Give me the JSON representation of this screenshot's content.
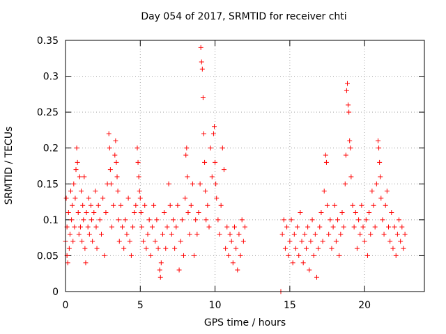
{
  "chart_data": {
    "type": "scatter",
    "title": "Day 054 of 2017, SRMTID for receiver chti",
    "xlabel": "GPS time / hours",
    "ylabel": "SRMTID / TECUs",
    "xlim": [
      0,
      24
    ],
    "ylim": [
      0,
      0.35
    ],
    "xticks": [
      0,
      5,
      10,
      15,
      20
    ],
    "xtick_labels": [
      "0",
      "5",
      "10",
      "15",
      "20"
    ],
    "yticks": [
      0,
      0.05,
      0.1,
      0.15,
      0.2,
      0.25,
      0.3,
      0.35
    ],
    "ytick_labels": [
      "0",
      "0.05",
      "0.1",
      "0.15",
      "0.2",
      "0.25",
      "0.3",
      "0.35"
    ],
    "grid": true,
    "marker": "+",
    "color": "#ff0000",
    "series": [
      {
        "name": "SRMTID",
        "points": [
          [
            0.0,
            0.07
          ],
          [
            0.05,
            0.13
          ],
          [
            0.1,
            0.05
          ],
          [
            0.1,
            0.09
          ],
          [
            0.15,
            0.04
          ],
          [
            0.2,
            0.11
          ],
          [
            0.25,
            0.06
          ],
          [
            0.3,
            0.08
          ],
          [
            0.35,
            0.14
          ],
          [
            0.4,
            0.1
          ],
          [
            0.45,
            0.12
          ],
          [
            0.5,
            0.07
          ],
          [
            0.55,
            0.15
          ],
          [
            0.6,
            0.09
          ],
          [
            0.65,
            0.13
          ],
          [
            0.7,
            0.17
          ],
          [
            0.75,
            0.2
          ],
          [
            0.8,
            0.18
          ],
          [
            0.85,
            0.11
          ],
          [
            0.9,
            0.08
          ],
          [
            0.95,
            0.16
          ],
          [
            1.0,
            0.09
          ],
          [
            1.05,
            0.14
          ],
          [
            1.1,
            0.07
          ],
          [
            1.15,
            0.12
          ],
          [
            1.2,
            0.1
          ],
          [
            1.25,
            0.16
          ],
          [
            1.3,
            0.06
          ],
          [
            1.35,
            0.04
          ],
          [
            1.4,
            0.11
          ],
          [
            1.5,
            0.09
          ],
          [
            1.55,
            0.13
          ],
          [
            1.6,
            0.08
          ],
          [
            1.7,
            0.12
          ],
          [
            1.75,
            0.1
          ],
          [
            1.8,
            0.07
          ],
          [
            1.9,
            0.11
          ],
          [
            2.0,
            0.14
          ],
          [
            2.05,
            0.09
          ],
          [
            2.1,
            0.06
          ],
          [
            2.2,
            0.12
          ],
          [
            2.3,
            0.1
          ],
          [
            2.4,
            0.08
          ],
          [
            2.5,
            0.13
          ],
          [
            2.6,
            0.05
          ],
          [
            2.7,
            0.11
          ],
          [
            2.8,
            0.15
          ],
          [
            2.9,
            0.22
          ],
          [
            2.95,
            0.2
          ],
          [
            3.0,
            0.17
          ],
          [
            3.05,
            0.15
          ],
          [
            3.1,
            0.09
          ],
          [
            3.2,
            0.12
          ],
          [
            3.3,
            0.19
          ],
          [
            3.35,
            0.21
          ],
          [
            3.4,
            0.18
          ],
          [
            3.45,
            0.16
          ],
          [
            3.5,
            0.14
          ],
          [
            3.55,
            0.1
          ],
          [
            3.6,
            0.07
          ],
          [
            3.7,
            0.12
          ],
          [
            3.8,
            0.09
          ],
          [
            3.9,
            0.06
          ],
          [
            4.0,
            0.1
          ],
          [
            4.1,
            0.08
          ],
          [
            4.2,
            0.13
          ],
          [
            4.3,
            0.07
          ],
          [
            4.4,
            0.05
          ],
          [
            4.5,
            0.09
          ],
          [
            4.6,
            0.11
          ],
          [
            4.7,
            0.12
          ],
          [
            4.8,
            0.2
          ],
          [
            4.85,
            0.18
          ],
          [
            4.9,
            0.16
          ],
          [
            4.95,
            0.14
          ],
          [
            5.0,
            0.13
          ],
          [
            5.05,
            0.11
          ],
          [
            5.1,
            0.09
          ],
          [
            5.2,
            0.07
          ],
          [
            5.3,
            0.12
          ],
          [
            5.4,
            0.06
          ],
          [
            5.5,
            0.08
          ],
          [
            5.6,
            0.1
          ],
          [
            5.7,
            0.05
          ],
          [
            5.8,
            0.09
          ],
          [
            5.9,
            0.12
          ],
          [
            6.0,
            0.07
          ],
          [
            6.1,
            0.1
          ],
          [
            6.2,
            0.06
          ],
          [
            6.3,
            0.03
          ],
          [
            6.35,
            0.02
          ],
          [
            6.4,
            0.04
          ],
          [
            6.5,
            0.08
          ],
          [
            6.6,
            0.11
          ],
          [
            6.7,
            0.06
          ],
          [
            6.8,
            0.09
          ],
          [
            6.9,
            0.15
          ],
          [
            7.0,
            0.12
          ],
          [
            7.1,
            0.08
          ],
          [
            7.2,
            0.1
          ],
          [
            7.3,
            0.06
          ],
          [
            7.4,
            0.09
          ],
          [
            7.5,
            0.12
          ],
          [
            7.6,
            0.03
          ],
          [
            7.7,
            0.07
          ],
          [
            7.8,
            0.1
          ],
          [
            7.9,
            0.05
          ],
          [
            8.0,
            0.13
          ],
          [
            8.05,
            0.19
          ],
          [
            8.1,
            0.2
          ],
          [
            8.15,
            0.16
          ],
          [
            8.2,
            0.11
          ],
          [
            8.3,
            0.08
          ],
          [
            8.4,
            0.12
          ],
          [
            8.5,
            0.15
          ],
          [
            8.6,
            0.05
          ],
          [
            8.7,
            0.1
          ],
          [
            8.8,
            0.08
          ],
          [
            8.9,
            0.11
          ],
          [
            9.0,
            0.15
          ],
          [
            9.05,
            0.34
          ],
          [
            9.1,
            0.32
          ],
          [
            9.15,
            0.31
          ],
          [
            9.2,
            0.27
          ],
          [
            9.25,
            0.22
          ],
          [
            9.3,
            0.18
          ],
          [
            9.35,
            0.14
          ],
          [
            9.4,
            0.1
          ],
          [
            9.5,
            0.12
          ],
          [
            9.6,
            0.09
          ],
          [
            9.7,
            0.2
          ],
          [
            9.8,
            0.16
          ],
          [
            9.9,
            0.22
          ],
          [
            9.95,
            0.23
          ],
          [
            10.0,
            0.18
          ],
          [
            10.05,
            0.15
          ],
          [
            10.1,
            0.13
          ],
          [
            10.2,
            0.1
          ],
          [
            10.3,
            0.08
          ],
          [
            10.4,
            0.12
          ],
          [
            10.5,
            0.2
          ],
          [
            10.6,
            0.17
          ],
          [
            10.7,
            0.06
          ],
          [
            10.8,
            0.09
          ],
          [
            10.9,
            0.05
          ],
          [
            11.0,
            0.08
          ],
          [
            11.1,
            0.07
          ],
          [
            11.2,
            0.04
          ],
          [
            11.3,
            0.09
          ],
          [
            11.4,
            0.06
          ],
          [
            11.5,
            0.03
          ],
          [
            11.6,
            0.08
          ],
          [
            11.7,
            0.05
          ],
          [
            11.8,
            0.1
          ],
          [
            11.9,
            0.07
          ],
          [
            12.0,
            0.09
          ],
          [
            14.4,
            0.0
          ],
          [
            14.5,
            0.08
          ],
          [
            14.6,
            0.1
          ],
          [
            14.7,
            0.06
          ],
          [
            14.8,
            0.09
          ],
          [
            14.9,
            0.05
          ],
          [
            15.0,
            0.07
          ],
          [
            15.1,
            0.1
          ],
          [
            15.2,
            0.04
          ],
          [
            15.3,
            0.08
          ],
          [
            15.4,
            0.06
          ],
          [
            15.5,
            0.09
          ],
          [
            15.6,
            0.05
          ],
          [
            15.7,
            0.11
          ],
          [
            15.8,
            0.07
          ],
          [
            15.9,
            0.04
          ],
          [
            16.0,
            0.08
          ],
          [
            16.1,
            0.06
          ],
          [
            16.2,
            0.09
          ],
          [
            16.3,
            0.03
          ],
          [
            16.4,
            0.07
          ],
          [
            16.5,
            0.1
          ],
          [
            16.6,
            0.05
          ],
          [
            16.7,
            0.08
          ],
          [
            16.8,
            0.02
          ],
          [
            16.9,
            0.06
          ],
          [
            17.0,
            0.09
          ],
          [
            17.1,
            0.11
          ],
          [
            17.2,
            0.07
          ],
          [
            17.3,
            0.14
          ],
          [
            17.4,
            0.19
          ],
          [
            17.45,
            0.18
          ],
          [
            17.5,
            0.12
          ],
          [
            17.6,
            0.08
          ],
          [
            17.7,
            0.1
          ],
          [
            17.8,
            0.06
          ],
          [
            17.9,
            0.09
          ],
          [
            18.0,
            0.12
          ],
          [
            18.1,
            0.07
          ],
          [
            18.2,
            0.1
          ],
          [
            18.3,
            0.05
          ],
          [
            18.4,
            0.08
          ],
          [
            18.5,
            0.11
          ],
          [
            18.6,
            0.09
          ],
          [
            18.7,
            0.15
          ],
          [
            18.75,
            0.19
          ],
          [
            18.8,
            0.28
          ],
          [
            18.85,
            0.29
          ],
          [
            18.9,
            0.26
          ],
          [
            18.95,
            0.25
          ],
          [
            19.0,
            0.21
          ],
          [
            19.05,
            0.2
          ],
          [
            19.1,
            0.16
          ],
          [
            19.2,
            0.12
          ],
          [
            19.3,
            0.09
          ],
          [
            19.4,
            0.11
          ],
          [
            19.5,
            0.06
          ],
          [
            19.6,
            0.1
          ],
          [
            19.7,
            0.08
          ],
          [
            19.8,
            0.12
          ],
          [
            19.9,
            0.09
          ],
          [
            20.0,
            0.07
          ],
          [
            20.1,
            0.1
          ],
          [
            20.2,
            0.05
          ],
          [
            20.3,
            0.11
          ],
          [
            20.4,
            0.08
          ],
          [
            20.5,
            0.14
          ],
          [
            20.6,
            0.12
          ],
          [
            20.7,
            0.09
          ],
          [
            20.8,
            0.15
          ],
          [
            20.9,
            0.21
          ],
          [
            20.95,
            0.2
          ],
          [
            21.0,
            0.18
          ],
          [
            21.05,
            0.16
          ],
          [
            21.1,
            0.13
          ],
          [
            21.2,
            0.1
          ],
          [
            21.3,
            0.08
          ],
          [
            21.4,
            0.12
          ],
          [
            21.5,
            0.14
          ],
          [
            21.6,
            0.09
          ],
          [
            21.7,
            0.07
          ],
          [
            21.8,
            0.11
          ],
          [
            21.9,
            0.06
          ],
          [
            22.0,
            0.09
          ],
          [
            22.1,
            0.05
          ],
          [
            22.2,
            0.08
          ],
          [
            22.3,
            0.1
          ],
          [
            22.4,
            0.07
          ],
          [
            22.5,
            0.09
          ],
          [
            22.6,
            0.06
          ],
          [
            22.7,
            0.08
          ]
        ]
      }
    ]
  }
}
